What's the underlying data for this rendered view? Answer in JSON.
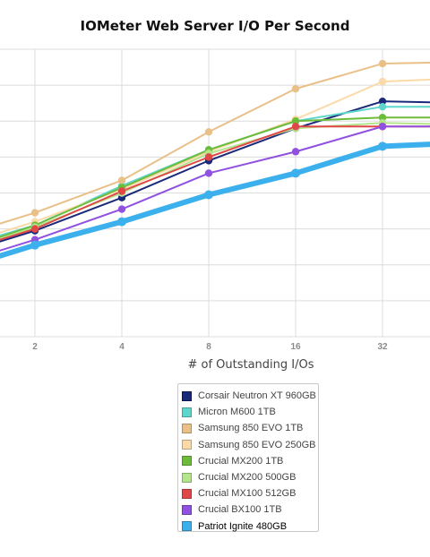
{
  "chart_data": {
    "type": "line",
    "title": "IOMeter Web Server I/O Per Second",
    "xlabel": "# of Outstanding I/Os",
    "ylabel": "",
    "x": [
      1,
      2,
      4,
      8,
      16,
      32,
      64
    ],
    "x_tick_labels": [
      "2",
      "4",
      "8",
      "16",
      "32"
    ],
    "x_scale": "log2",
    "ylim": [
      0,
      80000
    ],
    "grid": true,
    "legend_position": "bottom",
    "series": [
      {
        "name": "Corsair Neutron XT 960GB",
        "color": "#1a2a78",
        "values": [
          22000,
          29500,
          38700,
          49000,
          58000,
          65500,
          65000
        ]
      },
      {
        "name": "Micron M600 1TB",
        "color": "#5fd6cc",
        "values": [
          24000,
          31000,
          42000,
          52000,
          60000,
          64000,
          64000
        ]
      },
      {
        "name": "Samsung 850 EVO 1TB",
        "color": "#e8c088",
        "values": [
          27000,
          34500,
          43500,
          57000,
          69000,
          76000,
          76500
        ]
      },
      {
        "name": "Samsung 850 EVO 250GB",
        "color": "#fcd9a8",
        "values": [
          24500,
          32000,
          41000,
          51500,
          60500,
          71000,
          72000
        ]
      },
      {
        "name": "Crucial MX200 1TB",
        "color": "#6cbc3c",
        "values": [
          23000,
          31000,
          41500,
          52000,
          60000,
          61000,
          61000
        ]
      },
      {
        "name": "Crucial MX200 500GB",
        "color": "#b4e48c",
        "values": [
          22500,
          30500,
          40000,
          51000,
          58000,
          59500,
          59000
        ]
      },
      {
        "name": "Crucial MX100 512GB",
        "color": "#e04848",
        "values": [
          22500,
          30000,
          40500,
          50000,
          58500,
          58500,
          58500
        ]
      },
      {
        "name": "Crucial BX100 1TB",
        "color": "#9050e0",
        "values": [
          19500,
          27000,
          35500,
          45500,
          51500,
          58500,
          58500
        ]
      },
      {
        "name": "Patriot Ignite 480GB",
        "color": "#3cb0ec",
        "values": [
          18000,
          25500,
          32000,
          39500,
          45500,
          53000,
          54000
        ]
      }
    ]
  },
  "legend": {
    "selected": "Patriot Ignite 480GB"
  }
}
